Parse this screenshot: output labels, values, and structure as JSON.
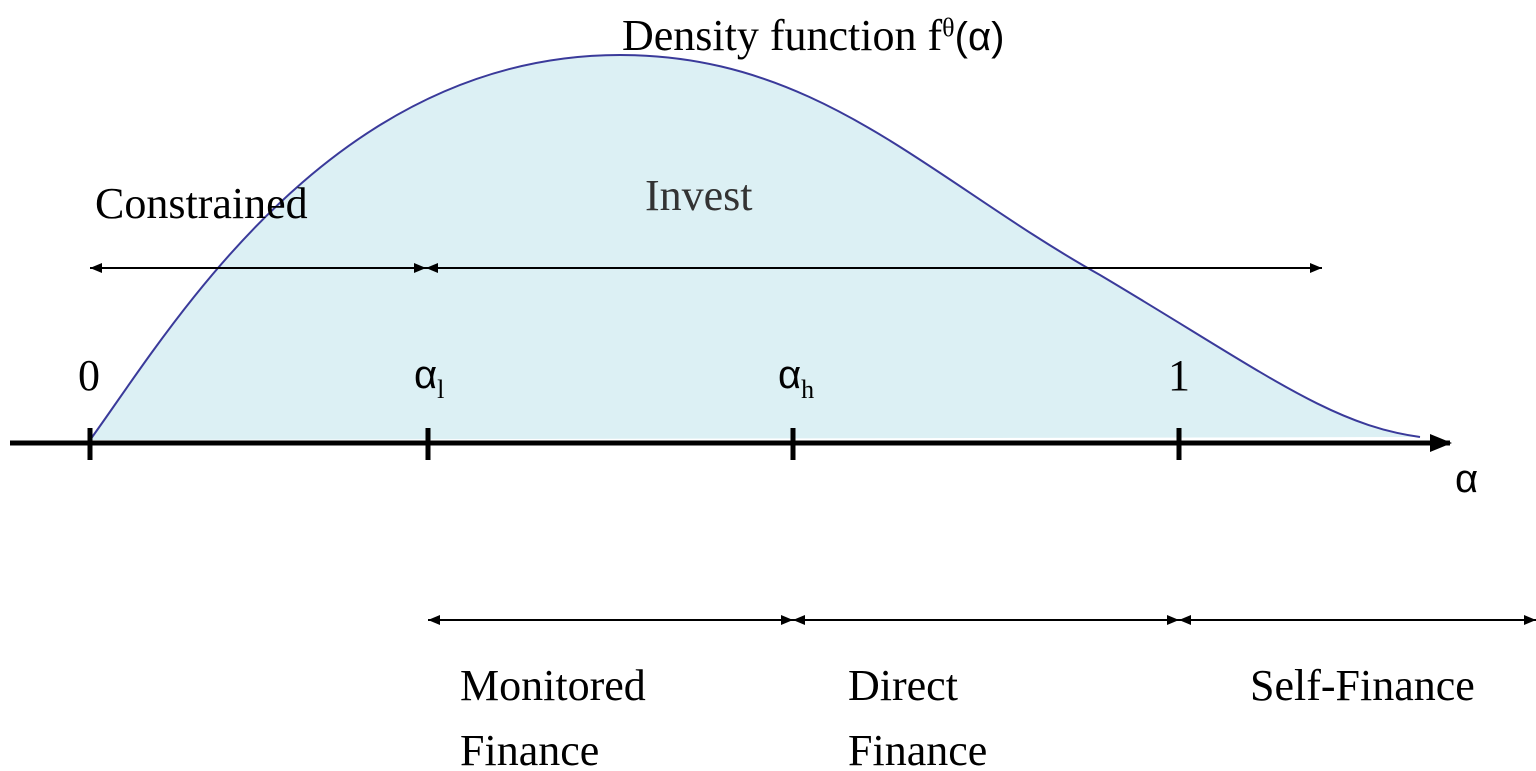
{
  "title": {
    "text": "Density function f",
    "sup": "θ",
    "tail": "(α)"
  },
  "regions": {
    "constrained": "Constrained",
    "invest": "Invest"
  },
  "ticks": [
    {
      "label": "0"
    },
    {
      "label": "α",
      "sub": "l"
    },
    {
      "label": "α",
      "sub": "h"
    },
    {
      "label": "1"
    }
  ],
  "axis_label": "α",
  "finance": [
    [
      "Monitored",
      "Finance"
    ],
    [
      "Direct",
      "Finance"
    ],
    [
      "Self-Finance"
    ]
  ]
}
